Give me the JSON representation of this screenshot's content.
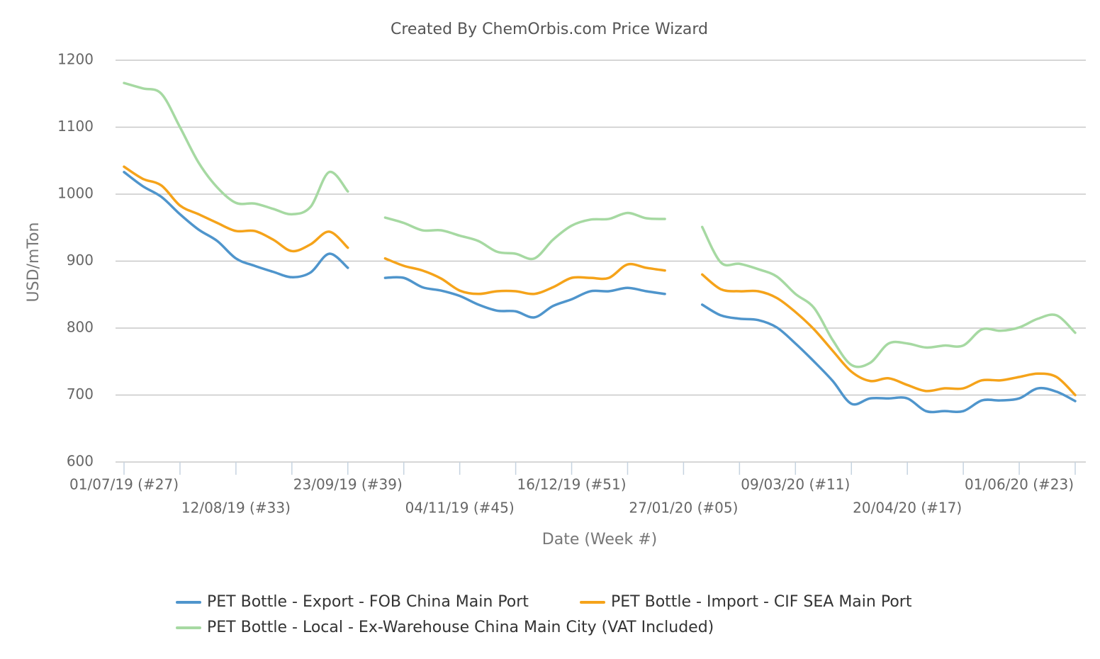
{
  "chart_data": {
    "type": "line",
    "title": "Created By ChemOrbis.com Price Wizard",
    "x_label": "Date (Week #)",
    "y_label": "USD/mTon",
    "categories": [
      "01/07/19 (#27)",
      null,
      null,
      null,
      null,
      null,
      "12/08/19 (#33)",
      null,
      null,
      null,
      null,
      null,
      "23/09/19 (#39)",
      null,
      null,
      null,
      null,
      null,
      "04/11/19 (#45)",
      null,
      null,
      null,
      null,
      null,
      "16/12/19 (#51)",
      null,
      null,
      null,
      null,
      null,
      "27/01/20 (#05)",
      null,
      null,
      null,
      null,
      null,
      "09/03/20 (#11)",
      null,
      null,
      null,
      null,
      null,
      "20/04/20 (#17)",
      null,
      null,
      null,
      null,
      null,
      "01/06/20 (#23)",
      null,
      null,
      null
    ],
    "series": [
      {
        "name": "PET Bottle - Export - FOB China Main Port",
        "color": "#4f95cc",
        "values": [
          1033,
          1012,
          996,
          970,
          947,
          930,
          904,
          893,
          884,
          876,
          883,
          911,
          890,
          null,
          875,
          875,
          861,
          856,
          848,
          835,
          826,
          825,
          816,
          833,
          843,
          855,
          855,
          860,
          855,
          851,
          null,
          835,
          819,
          814,
          812,
          801,
          777,
          750,
          721,
          687,
          695,
          695,
          695,
          676,
          676,
          676,
          692,
          692,
          695,
          710,
          705,
          691
        ]
      },
      {
        "name": "PET Bottle - Import - CIF SEA Main Port",
        "color": "#f5a31a",
        "values": [
          1041,
          1023,
          1013,
          983,
          970,
          957,
          945,
          945,
          932,
          915,
          925,
          944,
          920,
          null,
          904,
          893,
          886,
          874,
          856,
          851,
          855,
          855,
          851,
          861,
          875,
          875,
          875,
          895,
          890,
          886,
          null,
          880,
          858,
          855,
          855,
          845,
          824,
          798,
          766,
          735,
          721,
          725,
          715,
          706,
          710,
          710,
          722,
          722,
          727,
          732,
          727,
          700
        ]
      },
      {
        "name": "PET Bottle - Local - Ex-Warehouse China Main City (VAT Included)",
        "color": "#a6d9a2",
        "values": [
          1166,
          1158,
          1150,
          1100,
          1047,
          1010,
          987,
          986,
          978,
          970,
          981,
          1033,
          1004,
          null,
          965,
          957,
          946,
          946,
          938,
          930,
          914,
          911,
          904,
          932,
          953,
          962,
          963,
          972,
          964,
          963,
          null,
          951,
          898,
          896,
          888,
          877,
          851,
          830,
          782,
          745,
          748,
          777,
          777,
          771,
          774,
          774,
          798,
          796,
          801,
          814,
          819,
          793
        ]
      }
    ],
    "ylim": [
      600,
      1200
    ],
    "yticks": [
      600,
      700,
      800,
      900,
      1000,
      1100,
      1200
    ],
    "grid": true,
    "legend": "bottom"
  }
}
